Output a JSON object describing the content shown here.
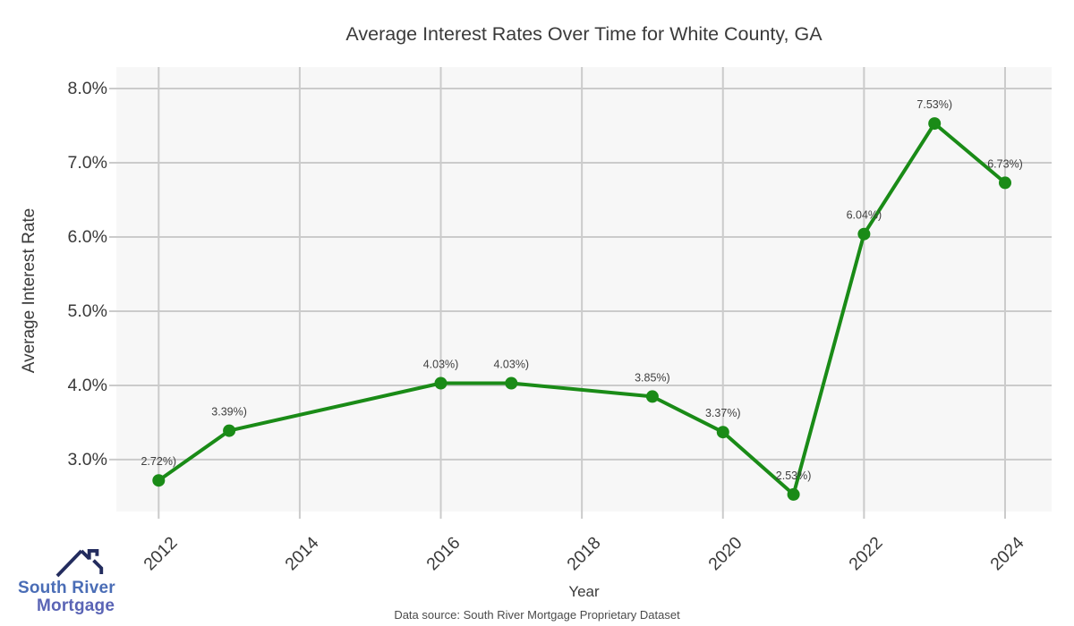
{
  "chart_data": {
    "type": "line",
    "title": "Average Interest Rates Over Time for White County, GA",
    "xlabel": "Year",
    "ylabel": "Average Interest Rate",
    "x": [
      2012,
      2013,
      2016,
      2017,
      2019,
      2020,
      2021,
      2022,
      2023,
      2024
    ],
    "y": [
      2.72,
      3.39,
      4.03,
      4.03,
      3.85,
      3.37,
      2.53,
      6.04,
      7.53,
      6.73
    ],
    "point_labels": [
      "2.72%)",
      "3.39%)",
      "4.03%)",
      "4.03%)",
      "3.85%)",
      "3.37%)",
      "2.53%)",
      "6.04%)",
      "7.53%)",
      "6.73%)"
    ],
    "x_tick_values": [
      2012,
      2014,
      2016,
      2018,
      2020,
      2022,
      2024
    ],
    "x_tick_labels": [
      "2012",
      "2014",
      "2016",
      "2018",
      "2020",
      "2022",
      "2024"
    ],
    "y_tick_values": [
      3.0,
      4.0,
      5.0,
      6.0,
      7.0,
      8.0
    ],
    "y_tick_labels": [
      "3.0%",
      "4.0%",
      "5.0%",
      "6.0%",
      "7.0%",
      "8.0%"
    ],
    "xlim": [
      2011.4,
      2024.66
    ],
    "ylim": [
      2.3,
      8.29
    ],
    "grid": true,
    "legend_position": "none",
    "line_color": "#1a8b17",
    "marker_color": "#1a8b17",
    "plot_background": "#f7f7f7",
    "grid_color": "#cbcbcb"
  },
  "branding": {
    "logo_line1": "South River",
    "logo_line2": "Mortgage",
    "logo_navy": "#232c5e",
    "logo_blue": "#4a6db6",
    "logo_purple": "#5a64b5",
    "source_note": "Data source: South River Mortgage Proprietary Dataset"
  }
}
